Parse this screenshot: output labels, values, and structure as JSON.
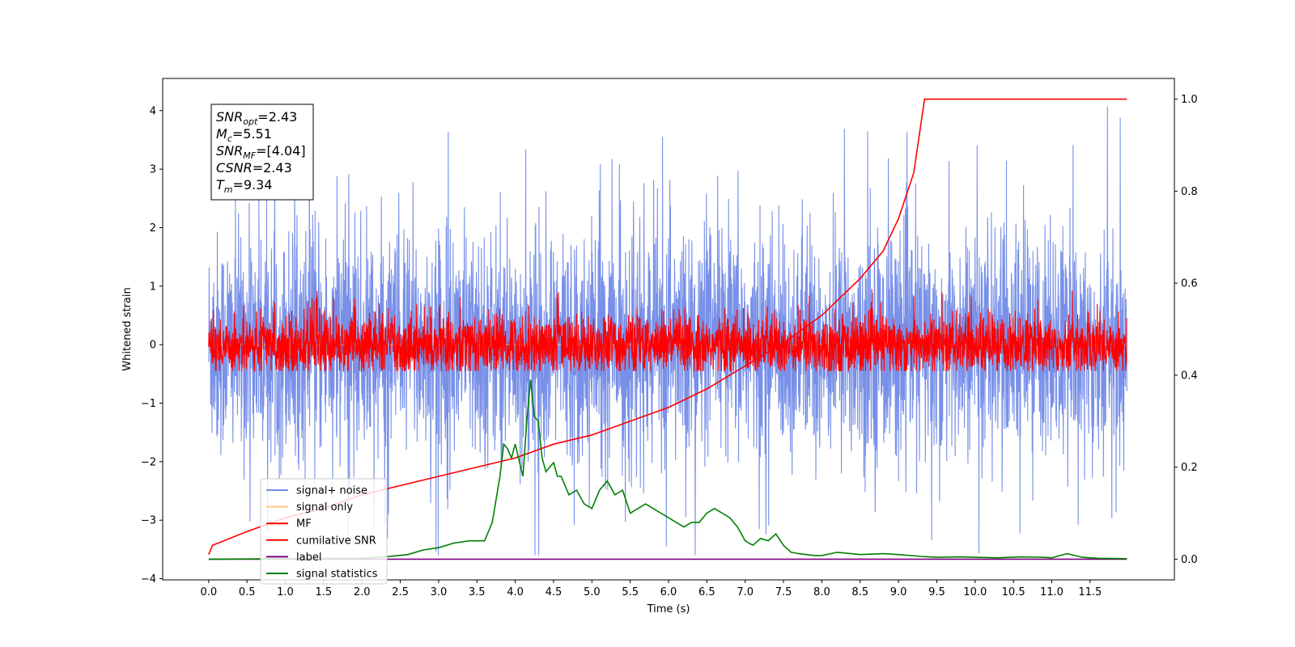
{
  "chart_data": {
    "type": "line",
    "title": "",
    "xlabel": "Time (s)",
    "ylabel": "Whitened strain",
    "xlim": [
      -0.6,
      12.6
    ],
    "ylim": [
      -4.02,
      4.55
    ],
    "y2lim": [
      -0.045,
      1.045
    ],
    "grid": false,
    "legend_position": "lower-left",
    "x_ticks": [
      "0.0",
      "0.5",
      "1.0",
      "1.5",
      "2.0",
      "2.5",
      "3.0",
      "3.5",
      "4.0",
      "4.5",
      "5.0",
      "5.5",
      "6.0",
      "6.5",
      "7.0",
      "7.5",
      "8.0",
      "8.5",
      "9.0",
      "9.5",
      "10.0",
      "10.5",
      "11.0",
      "11.5"
    ],
    "y_ticks": [
      "4",
      "3",
      "2",
      "1",
      "0",
      "−1",
      "−2",
      "−3",
      "−4"
    ],
    "y2_ticks": [
      "1.0",
      "0.8",
      "0.6",
      "0.4",
      "0.2",
      "0.0"
    ],
    "annotation": [
      {
        "sym": "SNR",
        "sub": "opt",
        "val": "=2.43"
      },
      {
        "sym": "M",
        "sub": "c",
        "val": "=5.51"
      },
      {
        "sym": "SNR",
        "sub": "MF",
        "val": "=[4.04]"
      },
      {
        "sym": "CSNR",
        "sub": "",
        "val": "=2.43"
      },
      {
        "sym": "T",
        "sub": "m",
        "val": "=9.34"
      }
    ],
    "series": [
      {
        "name": "signal+ noise",
        "color": "#7890e8",
        "axis": "left",
        "noise_std": 1.0,
        "range_min": -3.6,
        "range_max": 4.18,
        "x_start": 0.0,
        "x_end": 11.98
      },
      {
        "name": "signal only",
        "color": "#ffc87a",
        "axis": "left",
        "values_note": "~0, small chirp near 7.2 s",
        "peak_time": 7.2,
        "peak_value": 0.05
      },
      {
        "name": "MF",
        "color": "#ff0000",
        "axis": "left",
        "noise_std": 0.25,
        "range_min": -0.45,
        "range_max": 0.95,
        "x_start": 0.0,
        "x_end": 11.98
      },
      {
        "name": "cumilative SNR",
        "color": "#ff0000",
        "axis": "right",
        "x": [
          0.0,
          0.05,
          0.5,
          1.0,
          1.5,
          2.0,
          2.5,
          3.0,
          3.5,
          4.0,
          4.5,
          5.0,
          5.5,
          6.0,
          6.5,
          7.0,
          7.5,
          8.0,
          8.5,
          8.8,
          9.0,
          9.2,
          9.34,
          11.98
        ],
        "y": [
          0.01,
          0.03,
          0.06,
          0.09,
          0.11,
          0.14,
          0.16,
          0.18,
          0.2,
          0.22,
          0.25,
          0.27,
          0.3,
          0.33,
          0.37,
          0.42,
          0.47,
          0.53,
          0.61,
          0.67,
          0.74,
          0.84,
          1.0,
          1.0
        ]
      },
      {
        "name": "label",
        "color": "#800080",
        "axis": "right",
        "x": [
          0.0,
          11.98
        ],
        "y": [
          0.0,
          0.0
        ]
      },
      {
        "name": "signal statistics",
        "color": "#008000",
        "axis": "right",
        "x": [
          0.0,
          2.0,
          2.3,
          2.6,
          2.8,
          3.0,
          3.2,
          3.4,
          3.6,
          3.7,
          3.8,
          3.85,
          3.9,
          3.95,
          4.0,
          4.1,
          4.15,
          4.2,
          4.25,
          4.3,
          4.35,
          4.4,
          4.45,
          4.5,
          4.55,
          4.6,
          4.7,
          4.8,
          4.9,
          5.0,
          5.1,
          5.2,
          5.3,
          5.4,
          5.5,
          5.6,
          5.7,
          5.8,
          5.9,
          6.0,
          6.1,
          6.2,
          6.3,
          6.4,
          6.5,
          6.6,
          6.7,
          6.8,
          6.9,
          7.0,
          7.1,
          7.2,
          7.3,
          7.4,
          7.5,
          7.6,
          7.7,
          7.8,
          7.9,
          8.0,
          8.2,
          8.5,
          8.8,
          9.0,
          9.3,
          9.5,
          9.8,
          10.0,
          10.3,
          10.6,
          10.9,
          11.0,
          11.2,
          11.4,
          11.6,
          11.98
        ],
        "y": [
          0.0,
          0.002,
          0.005,
          0.01,
          0.02,
          0.025,
          0.035,
          0.04,
          0.04,
          0.08,
          0.18,
          0.25,
          0.24,
          0.22,
          0.25,
          0.18,
          0.3,
          0.39,
          0.31,
          0.3,
          0.22,
          0.19,
          0.2,
          0.21,
          0.18,
          0.18,
          0.14,
          0.15,
          0.12,
          0.11,
          0.15,
          0.17,
          0.14,
          0.15,
          0.1,
          0.11,
          0.12,
          0.11,
          0.1,
          0.09,
          0.08,
          0.07,
          0.08,
          0.08,
          0.1,
          0.11,
          0.1,
          0.09,
          0.07,
          0.04,
          0.03,
          0.045,
          0.04,
          0.055,
          0.03,
          0.015,
          0.012,
          0.01,
          0.008,
          0.008,
          0.015,
          0.01,
          0.012,
          0.01,
          0.006,
          0.004,
          0.005,
          0.004,
          0.003,
          0.005,
          0.004,
          0.003,
          0.012,
          0.004,
          0.002,
          0.001
        ]
      }
    ]
  }
}
